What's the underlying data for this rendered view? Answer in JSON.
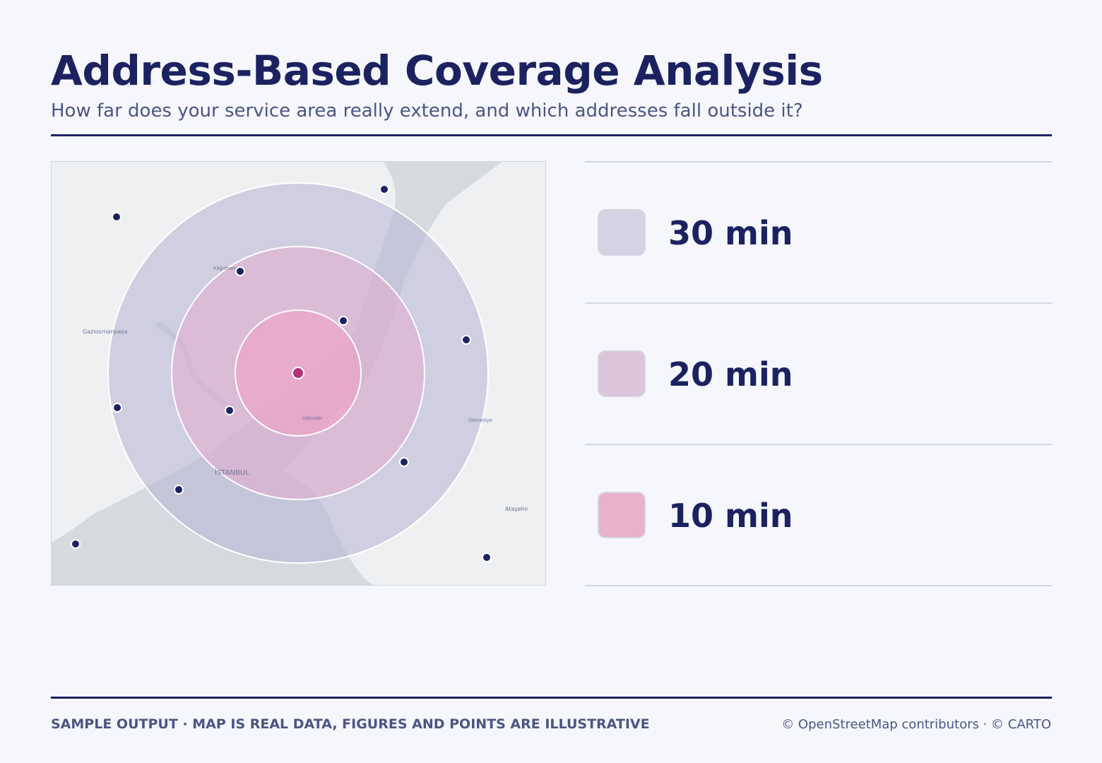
{
  "header": {
    "title": "Address-Based Coverage Analysis",
    "subtitle": "How far does your service area really extend, and which addresses fall outside it?"
  },
  "map": {
    "labels": [
      "Kâğıthane",
      "Gaziosmanpaşa",
      "İSTANBUL",
      "Üsküdar",
      "Ümraniye",
      "Ataşehir"
    ]
  },
  "legend": [
    {
      "label": "30 min",
      "color": "#d5d3e3"
    },
    {
      "label": "20 min",
      "color": "#dcc5da"
    },
    {
      "label": "10 min",
      "color": "#e8b2ca"
    }
  ],
  "footer": {
    "note": "SAMPLE OUTPUT · MAP IS REAL DATA, FIGURES AND POINTS ARE ILLUSTRATIVE",
    "credit": "© OpenStreetMap contributors · © CARTO"
  }
}
